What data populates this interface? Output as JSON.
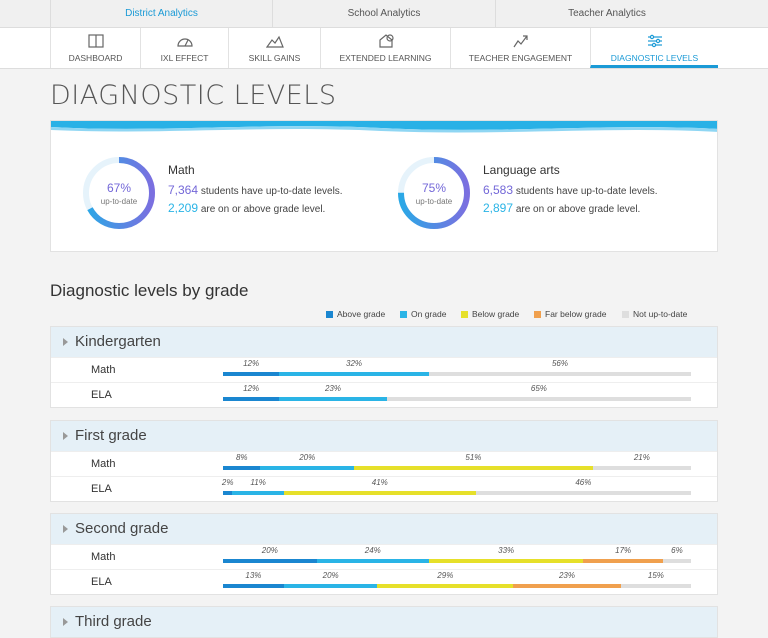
{
  "tabs": [
    "District Analytics",
    "School Analytics",
    "Teacher Analytics"
  ],
  "active_tab": 0,
  "nav": [
    "DASHBOARD",
    "IXL EFFECT",
    "SKILL GAINS",
    "EXTENDED LEARNING",
    "TEACHER ENGAGEMENT",
    "DIAGNOSTIC LEVELS"
  ],
  "active_nav": 5,
  "title": "DIAGNOSTIC LEVELS",
  "summary": [
    {
      "subject": "Math",
      "percent": {
        "value": 67,
        "label": "67%"
      },
      "caption": "up-to-date",
      "students": "7,364",
      "students_text": "students have up-to-date levels.",
      "on_grade": "2,209",
      "on_grade_text": "are on or above grade level."
    },
    {
      "subject": "Language arts",
      "percent": {
        "value": 75,
        "label": "75%"
      },
      "caption": "up-to-date",
      "students": "6,583",
      "students_text": "students have up-to-date levels.",
      "on_grade": "2,897",
      "on_grade_text": "are on or above grade level."
    }
  ],
  "section_title": "Diagnostic levels by grade",
  "legend": [
    {
      "name": "Above grade",
      "color": "#1a86d0"
    },
    {
      "name": "On grade",
      "color": "#2ab4e6"
    },
    {
      "name": "Below grade",
      "color": "#e6e02a"
    },
    {
      "name": "Far below grade",
      "color": "#f0a04e"
    },
    {
      "name": "Not up-to-date",
      "color": "#dedede"
    }
  ],
  "grades": [
    {
      "name": "Kindergarten",
      "rows": [
        {
          "subject": "Math",
          "values": [
            12,
            32,
            null,
            null,
            56
          ],
          "value_labels": [
            "12%",
            "32%",
            null,
            null,
            "56%"
          ]
        },
        {
          "subject": "ELA",
          "values": [
            12,
            23,
            null,
            null,
            65
          ],
          "value_labels": [
            "12%",
            "23%",
            null,
            null,
            "65%"
          ]
        }
      ]
    },
    {
      "name": "First grade",
      "rows": [
        {
          "subject": "Math",
          "values": [
            8,
            20,
            51,
            null,
            21
          ],
          "value_labels": [
            "8%",
            "20%",
            "51%",
            null,
            "21%"
          ]
        },
        {
          "subject": "ELA",
          "values": [
            2,
            11,
            41,
            null,
            46
          ],
          "value_labels": [
            "2%",
            "11%",
            "41%",
            null,
            "46%"
          ]
        }
      ]
    },
    {
      "name": "Second grade",
      "rows": [
        {
          "subject": "Math",
          "values": [
            20,
            24,
            33,
            17,
            6
          ],
          "value_labels": [
            "20%",
            "24%",
            "33%",
            "17%",
            "6%"
          ]
        },
        {
          "subject": "ELA",
          "values": [
            13,
            20,
            29,
            23,
            15
          ],
          "value_labels": [
            "13%",
            "20%",
            "29%",
            "23%",
            "15%"
          ]
        }
      ]
    },
    {
      "name": "Third grade",
      "rows": []
    }
  ]
}
